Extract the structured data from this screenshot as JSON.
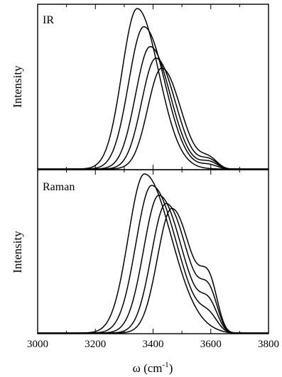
{
  "chart_data": {
    "type": "line",
    "xlabel": "ω (cm",
    "xlabel_sup": "-1",
    "xlabel_close": ")",
    "xlim": [
      3000,
      3800
    ],
    "xticks": [
      "3000",
      "3200",
      "3400",
      "3600",
      "3800"
    ],
    "grid": false,
    "legend": "none",
    "panels": [
      {
        "label": "IR",
        "ylabel": "Intensity",
        "ylim": [
          0,
          1.0
        ],
        "series": [
          {
            "peak": 3345,
            "height": 0.97,
            "wl": 85,
            "wr": 120,
            "shoulder": 0.0
          },
          {
            "peak": 3368,
            "height": 0.86,
            "wl": 85,
            "wr": 118,
            "shoulder": 0.05
          },
          {
            "peak": 3390,
            "height": 0.74,
            "wl": 82,
            "wr": 112,
            "shoulder": 0.1
          },
          {
            "peak": 3410,
            "height": 0.67,
            "wl": 80,
            "wr": 108,
            "shoulder": 0.14
          },
          {
            "peak": 3430,
            "height": 0.61,
            "wl": 78,
            "wr": 105,
            "shoulder": 0.17
          }
        ]
      },
      {
        "label": "Raman",
        "ylabel": "Intensity",
        "ylim": [
          0,
          1.0
        ],
        "series": [
          {
            "peak": 3370,
            "height": 0.97,
            "wl": 90,
            "wr": 150,
            "shoulder": 0.0
          },
          {
            "peak": 3395,
            "height": 0.9,
            "wl": 88,
            "wr": 140,
            "shoulder": 0.15
          },
          {
            "peak": 3420,
            "height": 0.84,
            "wl": 85,
            "wr": 130,
            "shoulder": 0.3
          },
          {
            "peak": 3445,
            "height": 0.79,
            "wl": 82,
            "wr": 120,
            "shoulder": 0.45
          },
          {
            "peak": 3465,
            "height": 0.76,
            "wl": 80,
            "wr": 110,
            "shoulder": 0.6
          }
        ]
      }
    ]
  }
}
